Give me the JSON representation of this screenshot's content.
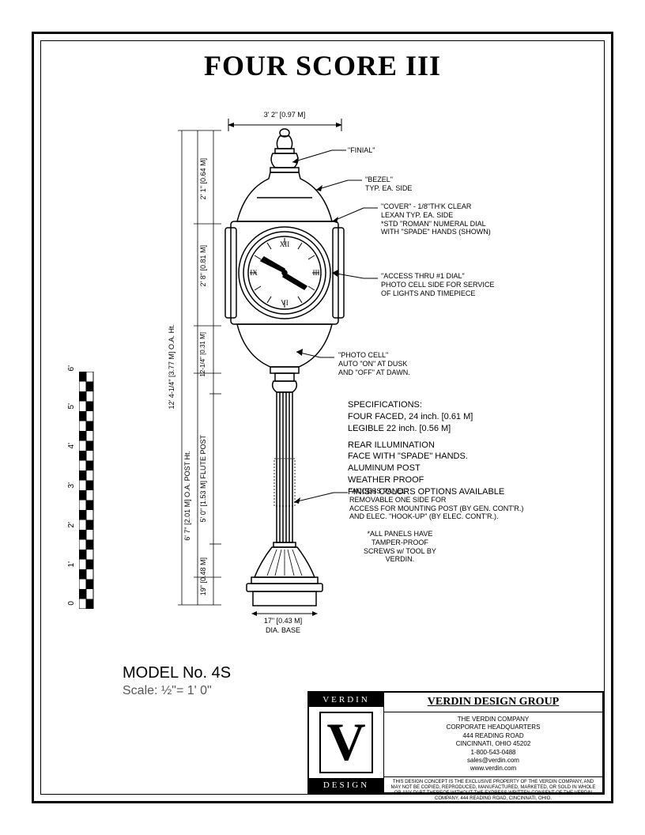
{
  "title": "FOUR SCORE III",
  "model": {
    "number": "MODEL No. 4S",
    "scale": "Scale: ½\"= 1' 0\""
  },
  "dimensions": {
    "top_width": "3' 2\" [0.97 M]",
    "finial_h": "2' 1\" [0.64 M]",
    "clock_h": "2' 8\" [0.81 M]",
    "throat_h": "12-1/4\" [0.31 M]",
    "overall_h": "12' 4-1/4\" [3.77 M] O.A. Ht.",
    "post_oa": "6' 7\" [2.01 M] O.A. POST Ht.",
    "flute": "5' 0\" [1.53 M] FLUTE POST",
    "base_h": "19\" [0.48 M]",
    "base_dia": "17\" [0.43 M]",
    "base_dia_label": "DIA. BASE"
  },
  "annotations": {
    "finial": "\"FINIAL\"",
    "bezel": "\"BEZEL\"",
    "bezel_sub": "TYP. EA. SIDE",
    "cover": "\"COVER\" - 1/8\"TH'K CLEAR",
    "cover_l2": "LEXAN TYP. EA. SIDE",
    "cover_l3": "*STD \"ROMAN\" NUMERAL DIAL",
    "cover_l4": "WITH \"SPADE\" HANDS (SHOWN)",
    "access_dial": "\"ACCESS THRU #1 DIAL\"",
    "access_dial_l2": "PHOTO CELL SIDE FOR SERVICE",
    "access_dial_l3": "OF LIGHTS AND TIMEPIECE",
    "photo_cell": "\"PHOTO CELL\"",
    "photo_cell_l2": "AUTO \"ON\" AT DUSK",
    "photo_cell_l3": "AND \"OFF\" AT DAWN.",
    "access_panel": "\"ACCESS PANEL\"",
    "access_panel_l2": "REMOVABLE ONE SIDE FOR",
    "access_panel_l3": "ACCESS FOR MOUNTING POST (BY GEN. CONT'R.)",
    "access_panel_l4": "AND ELEC. \"HOOK-UP\" (BY ELEC. CONT'R.).",
    "tamper": "*ALL PANELS HAVE",
    "tamper_l2": "TAMPER-PROOF",
    "tamper_l3": "SCREWS w/ TOOL BY",
    "tamper_l4": "VERDIN."
  },
  "specifications": {
    "heading": "SPECIFICATIONS:",
    "lines": [
      "FOUR FACED, 24 inch. [0.61 M]",
      "LEGIBLE 22 inch. [0.56 M]",
      "REAR ILLUMINATION",
      "FACE WITH \"SPADE\" HANDS.",
      "ALUMINUM POST",
      "WEATHER PROOF",
      "FINISH COLORS OPTIONS AVAILABLE"
    ]
  },
  "scale_ruler": {
    "ticks": [
      "0",
      "1'",
      "2'",
      "3'",
      "4'",
      "5'",
      "6'"
    ]
  },
  "title_block": {
    "logo_top": "VERDIN",
    "logo_mid": "V",
    "logo_bot": "DESIGN",
    "group": "VERDIN DESIGN GROUP",
    "addr": [
      "THE VERDIN COMPANY",
      "CORPORATE HEADQUARTERS",
      "444 READING ROAD",
      "CINCINNATI, OHIO 45202",
      "1-800-543-0488",
      "sales@verdin.com",
      "www.verdin.com"
    ],
    "legal": "THIS DESIGN CONCEPT IS THE EXCLUSIVE PROPERTY OF THE VERDIN COMPANY, AND MAY NOT BE COPIED, REPRODUCED, MANUFACTURED, MARKETED, OR SOLD IN WHOLE OR ANY PART THEREOF WITHOUT THE EXPRESS WRITTEN CONSENT OF THE VERDIN COMPANY, 444 READING ROAD, CINCINNATI, OHIO."
  },
  "colors": {
    "stroke": "#000000",
    "bg": "#ffffff"
  }
}
